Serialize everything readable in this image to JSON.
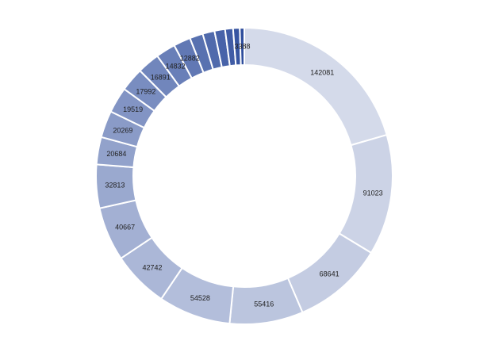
{
  "chart_data": {
    "type": "pie",
    "style": "doughnut",
    "values": [
      142081,
      91023,
      68641,
      55416,
      54528,
      42742,
      40667,
      32813,
      20684,
      20269,
      19519,
      17992,
      16891,
      14832,
      12882,
      10000,
      9000,
      8000,
      6000,
      5000,
      3388
    ],
    "labels": [
      "142081",
      "91023",
      "68641",
      "55416",
      "54528",
      "42742",
      "40667",
      "32813",
      "20684",
      "20269",
      "19519",
      "17992",
      "16891",
      "14832",
      "12882",
      "",
      "",
      "",
      "",
      "",
      "3388"
    ],
    "color_start": "#D4DAEA",
    "color_end": "#2F4E9D",
    "legend": "none"
  }
}
